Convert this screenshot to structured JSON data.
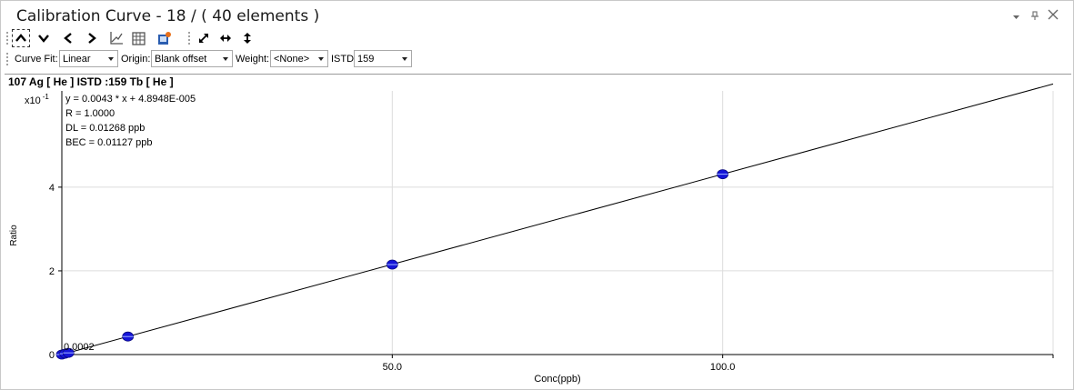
{
  "window": {
    "title": "Calibration Curve -  18 / ( 40 elements )"
  },
  "toolbar": {
    "icons": [
      "chevron-up-icon",
      "chevron-down-icon",
      "chevron-left-icon",
      "chevron-right-icon",
      "chart-icon",
      "grid-icon",
      "export-icon",
      "expand-icon",
      "horizontal-arrows-icon",
      "vertical-arrows-icon"
    ]
  },
  "options": {
    "curve_fit_label": "Curve Fit:",
    "curve_fit_value": "Linear",
    "origin_label": "Origin:",
    "origin_value": "Blank offset",
    "weight_label": "Weight:",
    "weight_value": "<None>",
    "istd_label": "ISTD:",
    "istd_value": "159"
  },
  "plot": {
    "header": "107  Ag  [ He ]  ISTD :159  Tb  [ He ]",
    "multiplier_base": "x10",
    "multiplier_exp": "-1",
    "equation": "y = 0.0043 * x  + 4.8948E-005",
    "r_value": "R =  1.0000",
    "dl": "DL = 0.01268 ppb",
    "bec": "BEC = 0.01127 ppb",
    "point_label": "0.0002"
  },
  "chart_data": {
    "type": "scatter",
    "xlabel": "Conc(ppb)",
    "ylabel": "Ratio",
    "xlim": [
      0,
      150
    ],
    "ylim": [
      0,
      6.3
    ],
    "x_ticks": [
      50,
      100
    ],
    "x_tick_labels": [
      "50.0",
      "100.0"
    ],
    "y_ticks": [
      0,
      2,
      4
    ],
    "y_tick_labels": [
      "0",
      "2",
      "4"
    ],
    "points": [
      {
        "x": 0,
        "y": 0.0
      },
      {
        "x": 0.5,
        "y": 0.02
      },
      {
        "x": 1,
        "y": 0.04
      },
      {
        "x": 10,
        "y": 0.43
      },
      {
        "x": 50,
        "y": 2.15
      },
      {
        "x": 100,
        "y": 4.31
      }
    ],
    "fit_line": {
      "slope": 0.0431,
      "intercept": 0.00049
    },
    "grid": true,
    "point_color": "#1515d8",
    "line_color": "#000000"
  }
}
